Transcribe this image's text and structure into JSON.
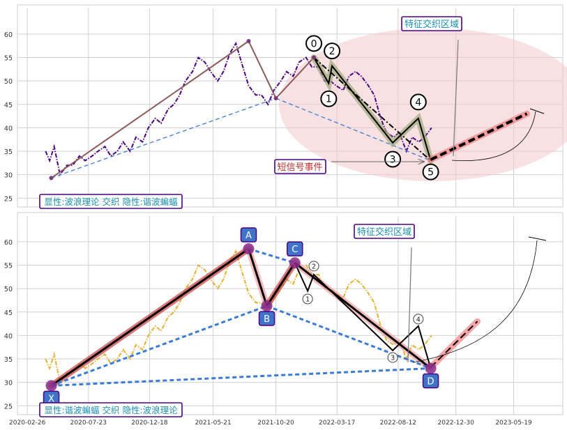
{
  "chart_data": [
    {
      "type": "line",
      "panel": "top",
      "ylim": [
        24,
        64
      ],
      "yticks": [
        25,
        30,
        35,
        40,
        45,
        50,
        55,
        60
      ],
      "grid": true,
      "series": [
        {
          "color": "#4b0082",
          "style": "dash-dot",
          "x": [
            "2020-04-10",
            "2020-04-20",
            "2020-05-01",
            "2020-05-15",
            "2020-06-01",
            "2020-06-15",
            "2020-07-01",
            "2020-07-15",
            "2020-08-01",
            "2020-08-15",
            "2020-09-01",
            "2020-09-15",
            "2020-10-01",
            "2020-10-15",
            "2020-11-01",
            "2020-11-15",
            "2020-12-01",
            "2020-12-15",
            "2021-01-01",
            "2021-01-15",
            "2021-02-01",
            "2021-02-15",
            "2021-03-01",
            "2021-03-15",
            "2021-04-01",
            "2021-04-15",
            "2021-05-01",
            "2021-05-15",
            "2021-06-01",
            "2021-06-15",
            "2021-07-01",
            "2021-07-15",
            "2021-08-01",
            "2021-08-15",
            "2021-09-01",
            "2021-09-15",
            "2021-10-01",
            "2021-10-15",
            "2021-11-01",
            "2021-11-15",
            "2021-12-01",
            "2021-12-15",
            "2022-01-01",
            "2022-01-15",
            "2022-02-01",
            "2022-02-15",
            "2022-03-01",
            "2022-03-15",
            "2022-04-01",
            "2022-04-15",
            "2022-05-01",
            "2022-05-15",
            "2022-06-01",
            "2022-06-15",
            "2022-07-01",
            "2022-07-15",
            "2022-08-01",
            "2022-08-15",
            "2022-09-01",
            "2022-09-15",
            "2022-10-01",
            "2022-10-15",
            "2022-11-01"
          ],
          "values": [
            35,
            33,
            36,
            30,
            32,
            32,
            34,
            33,
            34,
            35,
            36,
            34,
            35,
            37,
            35,
            38,
            37,
            40,
            42,
            41,
            44,
            45,
            47,
            50,
            52,
            55,
            54,
            52,
            50,
            52,
            56,
            58,
            53,
            49,
            47,
            47,
            45,
            48,
            50,
            52,
            51,
            54,
            55,
            53,
            53,
            50,
            50,
            49,
            48,
            51,
            52,
            51,
            49,
            47,
            42,
            39,
            38,
            39,
            35,
            38,
            37,
            38,
            40
          ]
        }
      ],
      "wave_lines": [
        {
          "name": "trend-up",
          "color": "#8b5a5a",
          "points": [
            [
              "2020-04-24",
              29.3
            ],
            [
              "2021-08-15",
              58.5
            ]
          ]
        },
        {
          "name": "trend-down",
          "color": "#8b5a5a",
          "points": [
            [
              "2021-08-15",
              58.5
            ],
            [
              "2021-10-20",
              46.3
            ]
          ]
        },
        {
          "name": "trend-up-2",
          "color": "#8b5a5a",
          "points": [
            [
              "2021-10-20",
              46.3
            ],
            [
              "2022-01-20",
              55.0
            ]
          ]
        },
        {
          "name": "support-line",
          "color": "#3a7bd5",
          "style": "dashed",
          "points": [
            [
              "2020-04-24",
              29.3
            ],
            [
              "2021-10-20",
              46.3
            ]
          ]
        },
        {
          "name": "support-line-2",
          "color": "#3a7bd5",
          "style": "dashed",
          "points": [
            [
              "2021-10-20",
              46.3
            ],
            [
              "2022-10-30",
              33.0
            ]
          ]
        },
        {
          "name": "elliott-wave",
          "color": "#000000",
          "highlight": "#a0a878",
          "points": [
            [
              "2022-01-20",
              55.0
            ],
            [
              "2022-02-25",
              49.5
            ],
            [
              "2022-03-05",
              53.2
            ],
            [
              "2022-07-30",
              36.8
            ],
            [
              "2022-09-30",
              42.0
            ],
            [
              "2022-10-30",
              33.0
            ]
          ]
        },
        {
          "name": "wave-channel",
          "color": "#000000",
          "style": "dash-dot",
          "points": [
            [
              "2022-01-20",
              55.0
            ],
            [
              "2022-10-30",
              33.0
            ]
          ]
        },
        {
          "name": "forecast-line",
          "color": "#000000",
          "highlight": "#f08080",
          "style": "dashed",
          "points": [
            [
              "2022-10-30",
              33.2
            ],
            [
              "2023-06-20",
              43.0
            ]
          ]
        }
      ],
      "wave_labels": [
        {
          "label": "0",
          "x": "2022-01-20",
          "y": 58.0
        },
        {
          "label": "1",
          "x": "2022-02-25",
          "y": 46.2
        },
        {
          "label": "2",
          "x": "2022-03-05",
          "y": 56.4
        },
        {
          "label": "3",
          "x": "2022-07-30",
          "y": 33.3
        },
        {
          "label": "4",
          "x": "2022-09-30",
          "y": 45.5
        },
        {
          "label": "5",
          "x": "2022-10-30",
          "y": 30.6
        }
      ],
      "annotations": {
        "region_label": "特征交织区域",
        "signal_label": "短信号事件",
        "legend_box": "显性:波浪理论 交织 隐性:谐波蝙蝠"
      }
    },
    {
      "type": "line",
      "panel": "bottom",
      "ylim": [
        24,
        64
      ],
      "yticks": [
        25,
        30,
        35,
        40,
        45,
        50,
        55,
        60
      ],
      "grid": true,
      "xtick_labels": [
        "2020-02-26",
        "2020-07-23",
        "2020-12-18",
        "2021-05-21",
        "2021-10-20",
        "2022-03-17",
        "2022-08-12",
        "2022-12-30",
        "2023-05-19"
      ],
      "xticks": [
        "2020-02-26",
        "2020-07-23",
        "2020-12-18",
        "2021-05-21",
        "2021-10-20",
        "2022-03-17",
        "2022-08-12",
        "2022-12-30",
        "2023-05-19"
      ],
      "series": [
        {
          "color": "#e8b030",
          "style": "dash-dot",
          "x": [
            "2020-04-10",
            "2020-04-20",
            "2020-05-01",
            "2020-05-15",
            "2020-06-01",
            "2020-06-15",
            "2020-07-01",
            "2020-07-15",
            "2020-08-01",
            "2020-08-15",
            "2020-09-01",
            "2020-09-15",
            "2020-10-01",
            "2020-10-15",
            "2020-11-01",
            "2020-11-15",
            "2020-12-01",
            "2020-12-15",
            "2021-01-01",
            "2021-01-15",
            "2021-02-01",
            "2021-02-15",
            "2021-03-01",
            "2021-03-15",
            "2021-04-01",
            "2021-04-15",
            "2021-05-01",
            "2021-05-15",
            "2021-06-01",
            "2021-06-15",
            "2021-07-01",
            "2021-07-15",
            "2021-08-01",
            "2021-08-15",
            "2021-09-01",
            "2021-09-15",
            "2021-10-01",
            "2021-10-15",
            "2021-11-01",
            "2021-11-15",
            "2021-12-01",
            "2021-12-15",
            "2022-01-01",
            "2022-01-15",
            "2022-02-01",
            "2022-02-15",
            "2022-03-01",
            "2022-03-15",
            "2022-04-01",
            "2022-04-15",
            "2022-05-01",
            "2022-05-15",
            "2022-06-01",
            "2022-06-15",
            "2022-07-01",
            "2022-07-15",
            "2022-08-01",
            "2022-08-15",
            "2022-09-01",
            "2022-09-15",
            "2022-10-01",
            "2022-10-15",
            "2022-11-01"
          ],
          "values": [
            35,
            33,
            36,
            30,
            32,
            32,
            34,
            33,
            34,
            35,
            36,
            34,
            35,
            37,
            35,
            38,
            37,
            40,
            42,
            41,
            44,
            45,
            47,
            50,
            52,
            55,
            54,
            52,
            50,
            52,
            56,
            58,
            53,
            49,
            47,
            47,
            45,
            48,
            50,
            52,
            51,
            54,
            55,
            53,
            53,
            50,
            50,
            49,
            48,
            51,
            52,
            51,
            49,
            47,
            42,
            39,
            38,
            39,
            35,
            38,
            37,
            38,
            40
          ]
        }
      ],
      "harmonic_points": [
        {
          "label": "X",
          "x": "2020-04-24",
          "y": 29.3
        },
        {
          "label": "A",
          "x": "2021-08-15",
          "y": 58.5
        },
        {
          "label": "B",
          "x": "2021-09-28",
          "y": 46.3
        },
        {
          "label": "C",
          "x": "2021-12-05",
          "y": 55.5
        },
        {
          "label": "D",
          "x": "2022-10-30",
          "y": 33.0
        }
      ],
      "harmonic_lines": [
        {
          "name": "leg-xa",
          "color": "#000000",
          "highlight": "#c84040",
          "points": [
            [
              "2020-04-24",
              29.3
            ],
            [
              "2021-08-15",
              58.5
            ]
          ]
        },
        {
          "name": "leg-ab",
          "color": "#000000",
          "highlight": "#f0a0a0",
          "points": [
            [
              "2021-08-15",
              58.5
            ],
            [
              "2021-09-28",
              46.3
            ]
          ]
        },
        {
          "name": "leg-bc",
          "color": "#000000",
          "highlight": "#c84040",
          "points": [
            [
              "2021-09-28",
              46.3
            ],
            [
              "2021-12-05",
              55.5
            ]
          ]
        },
        {
          "name": "leg-cd",
          "color": "#000000",
          "highlight": "#f0a0a0",
          "points": [
            [
              "2021-12-05",
              55.5
            ],
            [
              "2022-10-30",
              33.0
            ]
          ]
        },
        {
          "name": "x-b",
          "color": "#3a7bd5",
          "style": "dashed",
          "points": [
            [
              "2020-04-24",
              29.3
            ],
            [
              "2021-09-28",
              46.3
            ]
          ]
        },
        {
          "name": "a-c",
          "color": "#3a7bd5",
          "style": "dashed",
          "points": [
            [
              "2021-08-15",
              58.5
            ],
            [
              "2021-12-05",
              55.5
            ]
          ]
        },
        {
          "name": "b-d",
          "color": "#3a7bd5",
          "style": "dashed",
          "points": [
            [
              "2021-09-28",
              46.3
            ],
            [
              "2022-10-30",
              33.0
            ]
          ]
        },
        {
          "name": "x-d",
          "color": "#3a7bd5",
          "style": "dashed",
          "points": [
            [
              "2020-04-24",
              29.3
            ],
            [
              "2022-10-30",
              33.0
            ]
          ]
        },
        {
          "name": "wave-overlay",
          "color": "#000000",
          "points": [
            [
              "2021-12-05",
              55.5
            ],
            [
              "2022-01-05",
              49.5
            ],
            [
              "2022-01-20",
              53.0
            ],
            [
              "2022-07-30",
              36.8
            ],
            [
              "2022-09-30",
              42.0
            ],
            [
              "2022-10-30",
              33.0
            ]
          ]
        },
        {
          "name": "forecast-line",
          "color": "#000000",
          "highlight": "#f08080",
          "style": "dashed",
          "points": [
            [
              "2022-10-30",
              33.2
            ],
            [
              "2023-02-20",
              43.0
            ]
          ]
        }
      ],
      "wave_labels": [
        {
          "label": "1",
          "x": "2022-01-05",
          "y": 47.8
        },
        {
          "label": "2",
          "x": "2022-01-20",
          "y": 54.8
        },
        {
          "label": "3",
          "x": "2022-07-30",
          "y": 35.3
        },
        {
          "label": "4",
          "x": "2022-09-30",
          "y": 43.5
        }
      ],
      "annotations": {
        "region_label": "特征交织区域",
        "legend_box": "显性:谐波蝙蝠 交织 隐性:波浪理论"
      }
    }
  ]
}
